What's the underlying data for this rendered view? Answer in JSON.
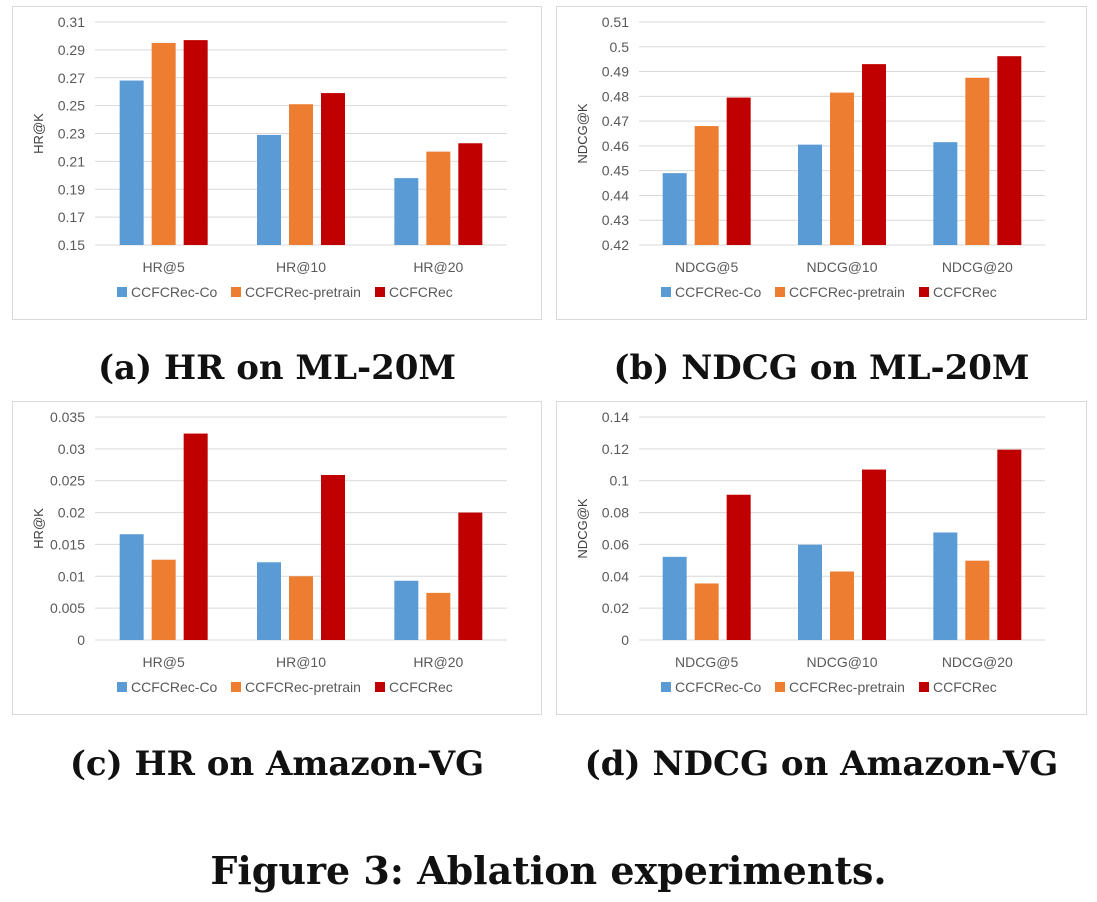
{
  "captions": {
    "a": "(a) HR on ML-20M",
    "b": "(b) NDCG on ML-20M",
    "c": "(c) HR on Amazon-VG",
    "d": "(d) NDCG on Amazon-VG",
    "figure": "Figure 3: Ablation experiments."
  },
  "colors": {
    "CCFCRec-Co": "#5b9bd5",
    "CCFCRec-pretrain": "#ed7d31",
    "CCFCRec": "#c00000"
  },
  "chart_data": [
    {
      "type": "bar",
      "categories": [
        "HR@5",
        "HR@10",
        "HR@20"
      ],
      "series": [
        {
          "name": "CCFCRec-Co",
          "values": [
            0.268,
            0.229,
            0.198
          ]
        },
        {
          "name": "CCFCRec-pretrain",
          "values": [
            0.295,
            0.251,
            0.217
          ]
        },
        {
          "name": "CCFCRec",
          "values": [
            0.297,
            0.259,
            0.223
          ]
        }
      ],
      "xlabel": "",
      "ylabel": "HR@K",
      "ylim": [
        0.15,
        0.31
      ],
      "yticks": [
        "0.15",
        "0.17",
        "0.19",
        "0.21",
        "0.23",
        "0.25",
        "0.27",
        "0.29",
        "0.31"
      ],
      "grid": true,
      "legend": "bottom"
    },
    {
      "type": "bar",
      "categories": [
        "NDCG@5",
        "NDCG@10",
        "NDCG@20"
      ],
      "series": [
        {
          "name": "CCFCRec-Co",
          "values": [
            0.449,
            0.4605,
            0.4615
          ]
        },
        {
          "name": "CCFCRec-pretrain",
          "values": [
            0.468,
            0.4815,
            0.4875
          ]
        },
        {
          "name": "CCFCRec",
          "values": [
            0.4795,
            0.493,
            0.4962
          ]
        }
      ],
      "xlabel": "",
      "ylabel": "NDCG@K",
      "ylim": [
        0.42,
        0.51
      ],
      "yticks": [
        "0.42",
        "0.43",
        "0.44",
        "0.45",
        "0.46",
        "0.47",
        "0.48",
        "0.49",
        "0.5",
        "0.51"
      ],
      "grid": true,
      "legend": "bottom"
    },
    {
      "type": "bar",
      "categories": [
        "HR@5",
        "HR@10",
        "HR@20"
      ],
      "series": [
        {
          "name": "CCFCRec-Co",
          "values": [
            0.0166,
            0.0122,
            0.0093
          ]
        },
        {
          "name": "CCFCRec-pretrain",
          "values": [
            0.0126,
            0.01,
            0.0074
          ]
        },
        {
          "name": "CCFCRec",
          "values": [
            0.0324,
            0.0259,
            0.02
          ]
        }
      ],
      "xlabel": "",
      "ylabel": "HR@K",
      "ylim": [
        0,
        0.035
      ],
      "yticks": [
        "0",
        "0.005",
        "0.01",
        "0.015",
        "0.02",
        "0.025",
        "0.03",
        "0.035"
      ],
      "grid": true,
      "legend": "bottom"
    },
    {
      "type": "bar",
      "categories": [
        "NDCG@5",
        "NDCG@10",
        "NDCG@20"
      ],
      "series": [
        {
          "name": "CCFCRec-Co",
          "values": [
            0.0522,
            0.0598,
            0.0675
          ]
        },
        {
          "name": "CCFCRec-pretrain",
          "values": [
            0.0355,
            0.043,
            0.0498
          ]
        },
        {
          "name": "CCFCRec",
          "values": [
            0.0912,
            0.107,
            0.1195
          ]
        }
      ],
      "xlabel": "",
      "ylabel": "NDCG@K",
      "ylim": [
        0,
        0.14
      ],
      "yticks": [
        "0",
        "0.02",
        "0.04",
        "0.06",
        "0.08",
        "0.1",
        "0.12",
        "0.14"
      ],
      "grid": true,
      "legend": "bottom"
    }
  ]
}
